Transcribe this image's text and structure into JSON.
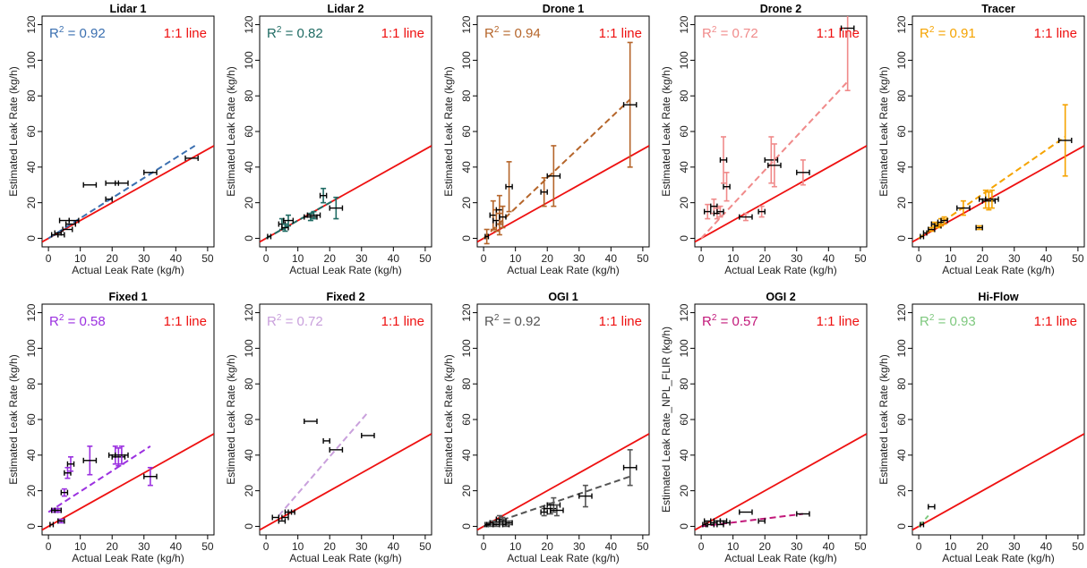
{
  "chart_data": [
    {
      "type": "scatter",
      "title": "Lidar 1",
      "r2_label": "= 0.92",
      "line_label": "1:1 line",
      "xlabel": "Actual Leak Rate (kg/h)",
      "ylabel": "Estimated Leak Rate (kg/h)",
      "xlim": [
        0,
        50
      ],
      "ylim": [
        0,
        120
      ],
      "xticks": [
        "0",
        "10",
        "20",
        "30",
        "40",
        "50"
      ],
      "yticks": [
        "0",
        "20",
        "40",
        "60",
        "80",
        "100",
        "120"
      ],
      "color": "#3a6fb0",
      "fit": [
        [
          0,
          0
        ],
        [
          46,
          52
        ]
      ],
      "points": [
        {
          "x": 2,
          "y": 2,
          "xe": 1,
          "ye": 0
        },
        {
          "x": 3,
          "y": 3,
          "xe": 1,
          "ye": 0
        },
        {
          "x": 4,
          "y": 2,
          "xe": 1,
          "ye": 0
        },
        {
          "x": 5,
          "y": 10,
          "xe": 1.5,
          "ye": 0
        },
        {
          "x": 6,
          "y": 5,
          "xe": 1.5,
          "ye": 0
        },
        {
          "x": 7,
          "y": 8,
          "xe": 1.5,
          "ye": 0
        },
        {
          "x": 8,
          "y": 10,
          "xe": 1.5,
          "ye": 0
        },
        {
          "x": 13,
          "y": 30,
          "xe": 2,
          "ye": 0
        },
        {
          "x": 19,
          "y": 22,
          "xe": 1,
          "ye": 0
        },
        {
          "x": 20,
          "y": 31,
          "xe": 2,
          "ye": 0
        },
        {
          "x": 23,
          "y": 31,
          "xe": 2,
          "ye": 0
        },
        {
          "x": 32,
          "y": 37,
          "xe": 2,
          "ye": 0
        },
        {
          "x": 45,
          "y": 45,
          "xe": 2,
          "ye": 0
        }
      ]
    },
    {
      "type": "scatter",
      "title": "Lidar 2",
      "r2_label": "= 0.82",
      "line_label": "1:1 line",
      "xlabel": "Actual Leak Rate (kg/h)",
      "ylabel": "Estimated Leak Rate (kg/h)",
      "xlim": [
        0,
        50
      ],
      "ylim": [
        0,
        120
      ],
      "xticks": [
        "0",
        "10",
        "20",
        "30",
        "40",
        "50"
      ],
      "yticks": [
        "0",
        "20",
        "40",
        "60",
        "80",
        "100",
        "120"
      ],
      "color": "#1f6b63",
      "fit": [
        [
          0,
          0
        ],
        [
          22,
          22
        ]
      ],
      "points": [
        {
          "x": 1,
          "y": 1,
          "xe": 0.5,
          "ye": 0
        },
        {
          "x": 5,
          "y": 8,
          "xe": 1,
          "ye": 3
        },
        {
          "x": 6,
          "y": 6,
          "xe": 1,
          "ye": 2
        },
        {
          "x": 7,
          "y": 10,
          "xe": 1.5,
          "ye": 3
        },
        {
          "x": 14,
          "y": 12,
          "xe": 2,
          "ye": 2
        },
        {
          "x": 15,
          "y": 13,
          "xe": 2,
          "ye": 2
        },
        {
          "x": 18,
          "y": 24,
          "xe": 1,
          "ye": 4
        },
        {
          "x": 22,
          "y": 17,
          "xe": 2,
          "ye": 6
        }
      ]
    },
    {
      "type": "scatter",
      "title": "Drone 1",
      "r2_label": "= 0.94",
      "line_label": "1:1 line",
      "xlabel": "Actual Leak Rate (kg/h)",
      "ylabel": "Estimated Leak Rate (kg/h)",
      "xlim": [
        0,
        50
      ],
      "ylim": [
        0,
        120
      ],
      "xticks": [
        "0",
        "10",
        "20",
        "30",
        "40",
        "50"
      ],
      "yticks": [
        "0",
        "20",
        "40",
        "60",
        "80",
        "100",
        "120"
      ],
      "color": "#b5652a",
      "fit": [
        [
          0,
          0
        ],
        [
          46,
          78
        ]
      ],
      "points": [
        {
          "x": 1,
          "y": 1,
          "xe": 0.5,
          "ye": 4
        },
        {
          "x": 3,
          "y": 13,
          "xe": 1,
          "ye": 8
        },
        {
          "x": 4,
          "y": 10,
          "xe": 1,
          "ye": 6
        },
        {
          "x": 5,
          "y": 8,
          "xe": 1,
          "ye": 6
        },
        {
          "x": 5,
          "y": 16,
          "xe": 1,
          "ye": 8
        },
        {
          "x": 6,
          "y": 12,
          "xe": 1,
          "ye": 6
        },
        {
          "x": 8,
          "y": 29,
          "xe": 1,
          "ye": 14
        },
        {
          "x": 19,
          "y": 26,
          "xe": 1,
          "ye": 8
        },
        {
          "x": 22,
          "y": 35,
          "xe": 2,
          "ye": 17
        },
        {
          "x": 46,
          "y": 75,
          "xe": 2,
          "ye": 35
        }
      ]
    },
    {
      "type": "scatter",
      "title": "Drone 2",
      "r2_label": "= 0.72",
      "line_label": "1:1 line",
      "xlabel": "Actual Leak Rate (kg/h)",
      "ylabel": "Estimated Leak Rate (kg/h)",
      "xlim": [
        0,
        50
      ],
      "ylim": [
        0,
        120
      ],
      "xticks": [
        "0",
        "10",
        "20",
        "30",
        "40",
        "50"
      ],
      "yticks": [
        "0",
        "20",
        "40",
        "60",
        "80",
        "100",
        "120"
      ],
      "color": "#f08a8a",
      "fit": [
        [
          0,
          0
        ],
        [
          46,
          88
        ]
      ],
      "points": [
        {
          "x": 2,
          "y": 15,
          "xe": 1,
          "ye": 4
        },
        {
          "x": 4,
          "y": 18,
          "xe": 1,
          "ye": 4
        },
        {
          "x": 5,
          "y": 14,
          "xe": 1,
          "ye": 3
        },
        {
          "x": 6,
          "y": 15,
          "xe": 1,
          "ye": 3
        },
        {
          "x": 7,
          "y": 44,
          "xe": 1,
          "ye": 13
        },
        {
          "x": 8,
          "y": 29,
          "xe": 1,
          "ye": 8
        },
        {
          "x": 14,
          "y": 12,
          "xe": 2,
          "ye": 2
        },
        {
          "x": 19,
          "y": 15,
          "xe": 1,
          "ye": 3
        },
        {
          "x": 22,
          "y": 44,
          "xe": 2,
          "ye": 13
        },
        {
          "x": 23,
          "y": 41,
          "xe": 2,
          "ye": 12
        },
        {
          "x": 32,
          "y": 37,
          "xe": 2,
          "ye": 7
        },
        {
          "x": 46,
          "y": 118,
          "xe": 2,
          "ye": 35
        }
      ]
    },
    {
      "type": "scatter",
      "title": "Tracer",
      "r2_label": "= 0.91",
      "line_label": "1:1 line",
      "xlabel": "Actual Leak Rate (kg/h)",
      "ylabel": "Estimated Leak Rate (kg/h)",
      "xlim": [
        0,
        50
      ],
      "ylim": [
        0,
        120
      ],
      "xticks": [
        "0",
        "10",
        "20",
        "30",
        "40",
        "50"
      ],
      "yticks": [
        "0",
        "20",
        "40",
        "60",
        "80",
        "100",
        "120"
      ],
      "color": "#f5a300",
      "fit": [
        [
          0,
          0
        ],
        [
          46,
          57
        ]
      ],
      "points": [
        {
          "x": 1,
          "y": 1,
          "xe": 0.5,
          "ye": 0
        },
        {
          "x": 2,
          "y": 3,
          "xe": 0.5,
          "ye": 0
        },
        {
          "x": 4,
          "y": 5,
          "xe": 1,
          "ye": 1
        },
        {
          "x": 5,
          "y": 8,
          "xe": 1,
          "ye": 1
        },
        {
          "x": 6,
          "y": 7,
          "xe": 1,
          "ye": 1
        },
        {
          "x": 7,
          "y": 9,
          "xe": 1,
          "ye": 2
        },
        {
          "x": 8,
          "y": 10,
          "xe": 1,
          "ye": 2
        },
        {
          "x": 14,
          "y": 17,
          "xe": 2,
          "ye": 4
        },
        {
          "x": 19,
          "y": 6,
          "xe": 1,
          "ye": 1
        },
        {
          "x": 21,
          "y": 22,
          "xe": 2,
          "ye": 5
        },
        {
          "x": 22,
          "y": 21,
          "xe": 2,
          "ye": 5
        },
        {
          "x": 23,
          "y": 22,
          "xe": 2,
          "ye": 5
        },
        {
          "x": 46,
          "y": 55,
          "xe": 2,
          "ye": 20
        }
      ]
    },
    {
      "type": "scatter",
      "title": "Fixed 1",
      "r2_label": "= 0.58",
      "line_label": "1:1 line",
      "xlabel": "Actual Leak Rate (kg/h)",
      "ylabel": "Estimated Leak Rate (kg/h)",
      "xlim": [
        0,
        50
      ],
      "ylim": [
        0,
        120
      ],
      "xticks": [
        "0",
        "10",
        "20",
        "30",
        "40",
        "50"
      ],
      "yticks": [
        "0",
        "20",
        "40",
        "60",
        "80",
        "100",
        "120"
      ],
      "color": "#9b30e0",
      "fit": [
        [
          0,
          8
        ],
        [
          32,
          45
        ]
      ],
      "points": [
        {
          "x": 1,
          "y": 1,
          "xe": 0.5,
          "ye": 0
        },
        {
          "x": 2,
          "y": 9,
          "xe": 1,
          "ye": 1
        },
        {
          "x": 3,
          "y": 9,
          "xe": 1,
          "ye": 1
        },
        {
          "x": 4,
          "y": 3,
          "xe": 1,
          "ye": 1
        },
        {
          "x": 5,
          "y": 19,
          "xe": 1,
          "ye": 2
        },
        {
          "x": 6,
          "y": 30,
          "xe": 1,
          "ye": 3
        },
        {
          "x": 7,
          "y": 35,
          "xe": 1,
          "ye": 4
        },
        {
          "x": 13,
          "y": 37,
          "xe": 2,
          "ye": 8
        },
        {
          "x": 21,
          "y": 40,
          "xe": 2,
          "ye": 5
        },
        {
          "x": 22,
          "y": 39,
          "xe": 2,
          "ye": 5
        },
        {
          "x": 23,
          "y": 40,
          "xe": 2,
          "ye": 5
        },
        {
          "x": 32,
          "y": 28,
          "xe": 2,
          "ye": 5
        }
      ]
    },
    {
      "type": "scatter",
      "title": "Fixed 2",
      "r2_label": "= 0.72",
      "line_label": "1:1 line",
      "xlabel": "Actual Leak Rate (kg/h)",
      "ylabel": "Estimated Leak Rate (kg/h)",
      "xlim": [
        0,
        50
      ],
      "ylim": [
        0,
        120
      ],
      "xticks": [
        "0",
        "10",
        "20",
        "30",
        "40",
        "50"
      ],
      "yticks": [
        "0",
        "20",
        "40",
        "60",
        "80",
        "100",
        "120"
      ],
      "color": "#c9a0dc",
      "fit": [
        [
          4,
          6
        ],
        [
          32,
          64
        ]
      ],
      "points": [
        {
          "x": 3,
          "y": 5,
          "xe": 1,
          "ye": 0
        },
        {
          "x": 5,
          "y": 3,
          "xe": 1,
          "ye": 0
        },
        {
          "x": 6,
          "y": 5,
          "xe": 1,
          "ye": 0
        },
        {
          "x": 7,
          "y": 8,
          "xe": 1,
          "ye": 0
        },
        {
          "x": 8,
          "y": 8,
          "xe": 1,
          "ye": 0
        },
        {
          "x": 14,
          "y": 59,
          "xe": 2,
          "ye": 0
        },
        {
          "x": 19,
          "y": 48,
          "xe": 1,
          "ye": 0
        },
        {
          "x": 22,
          "y": 43,
          "xe": 2,
          "ye": 0
        },
        {
          "x": 32,
          "y": 51,
          "xe": 2,
          "ye": 0
        }
      ]
    },
    {
      "type": "scatter",
      "title": "OGI 1",
      "r2_label": "= 0.92",
      "line_label": "1:1 line",
      "xlabel": "Actual Leak Rate (kg/h)",
      "ylabel": "Estimated Leak Rate (kg/h)",
      "xlim": [
        0,
        50
      ],
      "ylim": [
        0,
        120
      ],
      "xticks": [
        "0",
        "10",
        "20",
        "30",
        "40",
        "50"
      ],
      "yticks": [
        "0",
        "20",
        "40",
        "60",
        "80",
        "100",
        "120"
      ],
      "color": "#555555",
      "fit": [
        [
          0,
          0
        ],
        [
          46,
          28
        ]
      ],
      "points": [
        {
          "x": 1,
          "y": 1,
          "xe": 0.5,
          "ye": 0
        },
        {
          "x": 2,
          "y": 1,
          "xe": 1,
          "ye": 1
        },
        {
          "x": 3,
          "y": 2,
          "xe": 1,
          "ye": 1
        },
        {
          "x": 4,
          "y": 1,
          "xe": 1,
          "ye": 1
        },
        {
          "x": 5,
          "y": 4,
          "xe": 1,
          "ye": 2
        },
        {
          "x": 6,
          "y": 3,
          "xe": 1,
          "ye": 2
        },
        {
          "x": 7,
          "y": 1,
          "xe": 1,
          "ye": 1
        },
        {
          "x": 8,
          "y": 2,
          "xe": 1,
          "ye": 1
        },
        {
          "x": 19,
          "y": 8,
          "xe": 1,
          "ye": 2
        },
        {
          "x": 21,
          "y": 10,
          "xe": 2,
          "ye": 3
        },
        {
          "x": 22,
          "y": 12,
          "xe": 2,
          "ye": 4
        },
        {
          "x": 23,
          "y": 9,
          "xe": 2,
          "ye": 3
        },
        {
          "x": 32,
          "y": 17,
          "xe": 2,
          "ye": 6
        },
        {
          "x": 46,
          "y": 33,
          "xe": 2,
          "ye": 10
        }
      ]
    },
    {
      "type": "scatter",
      "title": "OGI 2",
      "r2_label": "= 0.57",
      "line_label": "1:1 line",
      "xlabel": "Actual Leak Rate (kg/h)",
      "ylabel": "Estimated Leak Rate_NPL_FLIR (kg/h)",
      "xlim": [
        0,
        50
      ],
      "ylim": [
        0,
        120
      ],
      "xticks": [
        "0",
        "10",
        "20",
        "30",
        "40",
        "50"
      ],
      "yticks": [
        "0",
        "20",
        "40",
        "60",
        "80",
        "100",
        "120"
      ],
      "color": "#c2187a",
      "fit": [
        [
          0,
          0
        ],
        [
          32,
          7
        ]
      ],
      "points": [
        {
          "x": 1,
          "y": 1,
          "xe": 0.5,
          "ye": 0
        },
        {
          "x": 2,
          "y": 3,
          "xe": 1,
          "ye": 0
        },
        {
          "x": 3,
          "y": 1,
          "xe": 1,
          "ye": 0
        },
        {
          "x": 4,
          "y": 2,
          "xe": 1,
          "ye": 0
        },
        {
          "x": 5,
          "y": 3,
          "xe": 1,
          "ye": 0
        },
        {
          "x": 6,
          "y": 1,
          "xe": 1,
          "ye": 0
        },
        {
          "x": 7,
          "y": 3,
          "xe": 1,
          "ye": 0
        },
        {
          "x": 8,
          "y": 2,
          "xe": 1,
          "ye": 0
        },
        {
          "x": 14,
          "y": 8,
          "xe": 2,
          "ye": 0
        },
        {
          "x": 19,
          "y": 3,
          "xe": 1,
          "ye": 0
        },
        {
          "x": 32,
          "y": 7,
          "xe": 2,
          "ye": 0
        }
      ]
    },
    {
      "type": "scatter",
      "title": "Hi-Flow",
      "r2_label": "= 0.93",
      "line_label": "1:1 line",
      "xlabel": "Actual Leak Rate (kg/h)",
      "ylabel": "Estimated Leak Rate (kg/h)",
      "xlim": [
        0,
        50
      ],
      "ylim": [
        0,
        120
      ],
      "xticks": [
        "0",
        "10",
        "20",
        "30",
        "40",
        "50"
      ],
      "yticks": [
        "0",
        "20",
        "40",
        "60",
        "80",
        "100",
        "120"
      ],
      "color": "#7ec87e",
      "fit": [
        [
          0,
          0
        ],
        [
          3,
          6
        ]
      ],
      "points": [
        {
          "x": 1,
          "y": 1,
          "xe": 0.5,
          "ye": 0
        },
        {
          "x": 4,
          "y": 11,
          "xe": 1,
          "ye": 0
        }
      ]
    }
  ]
}
